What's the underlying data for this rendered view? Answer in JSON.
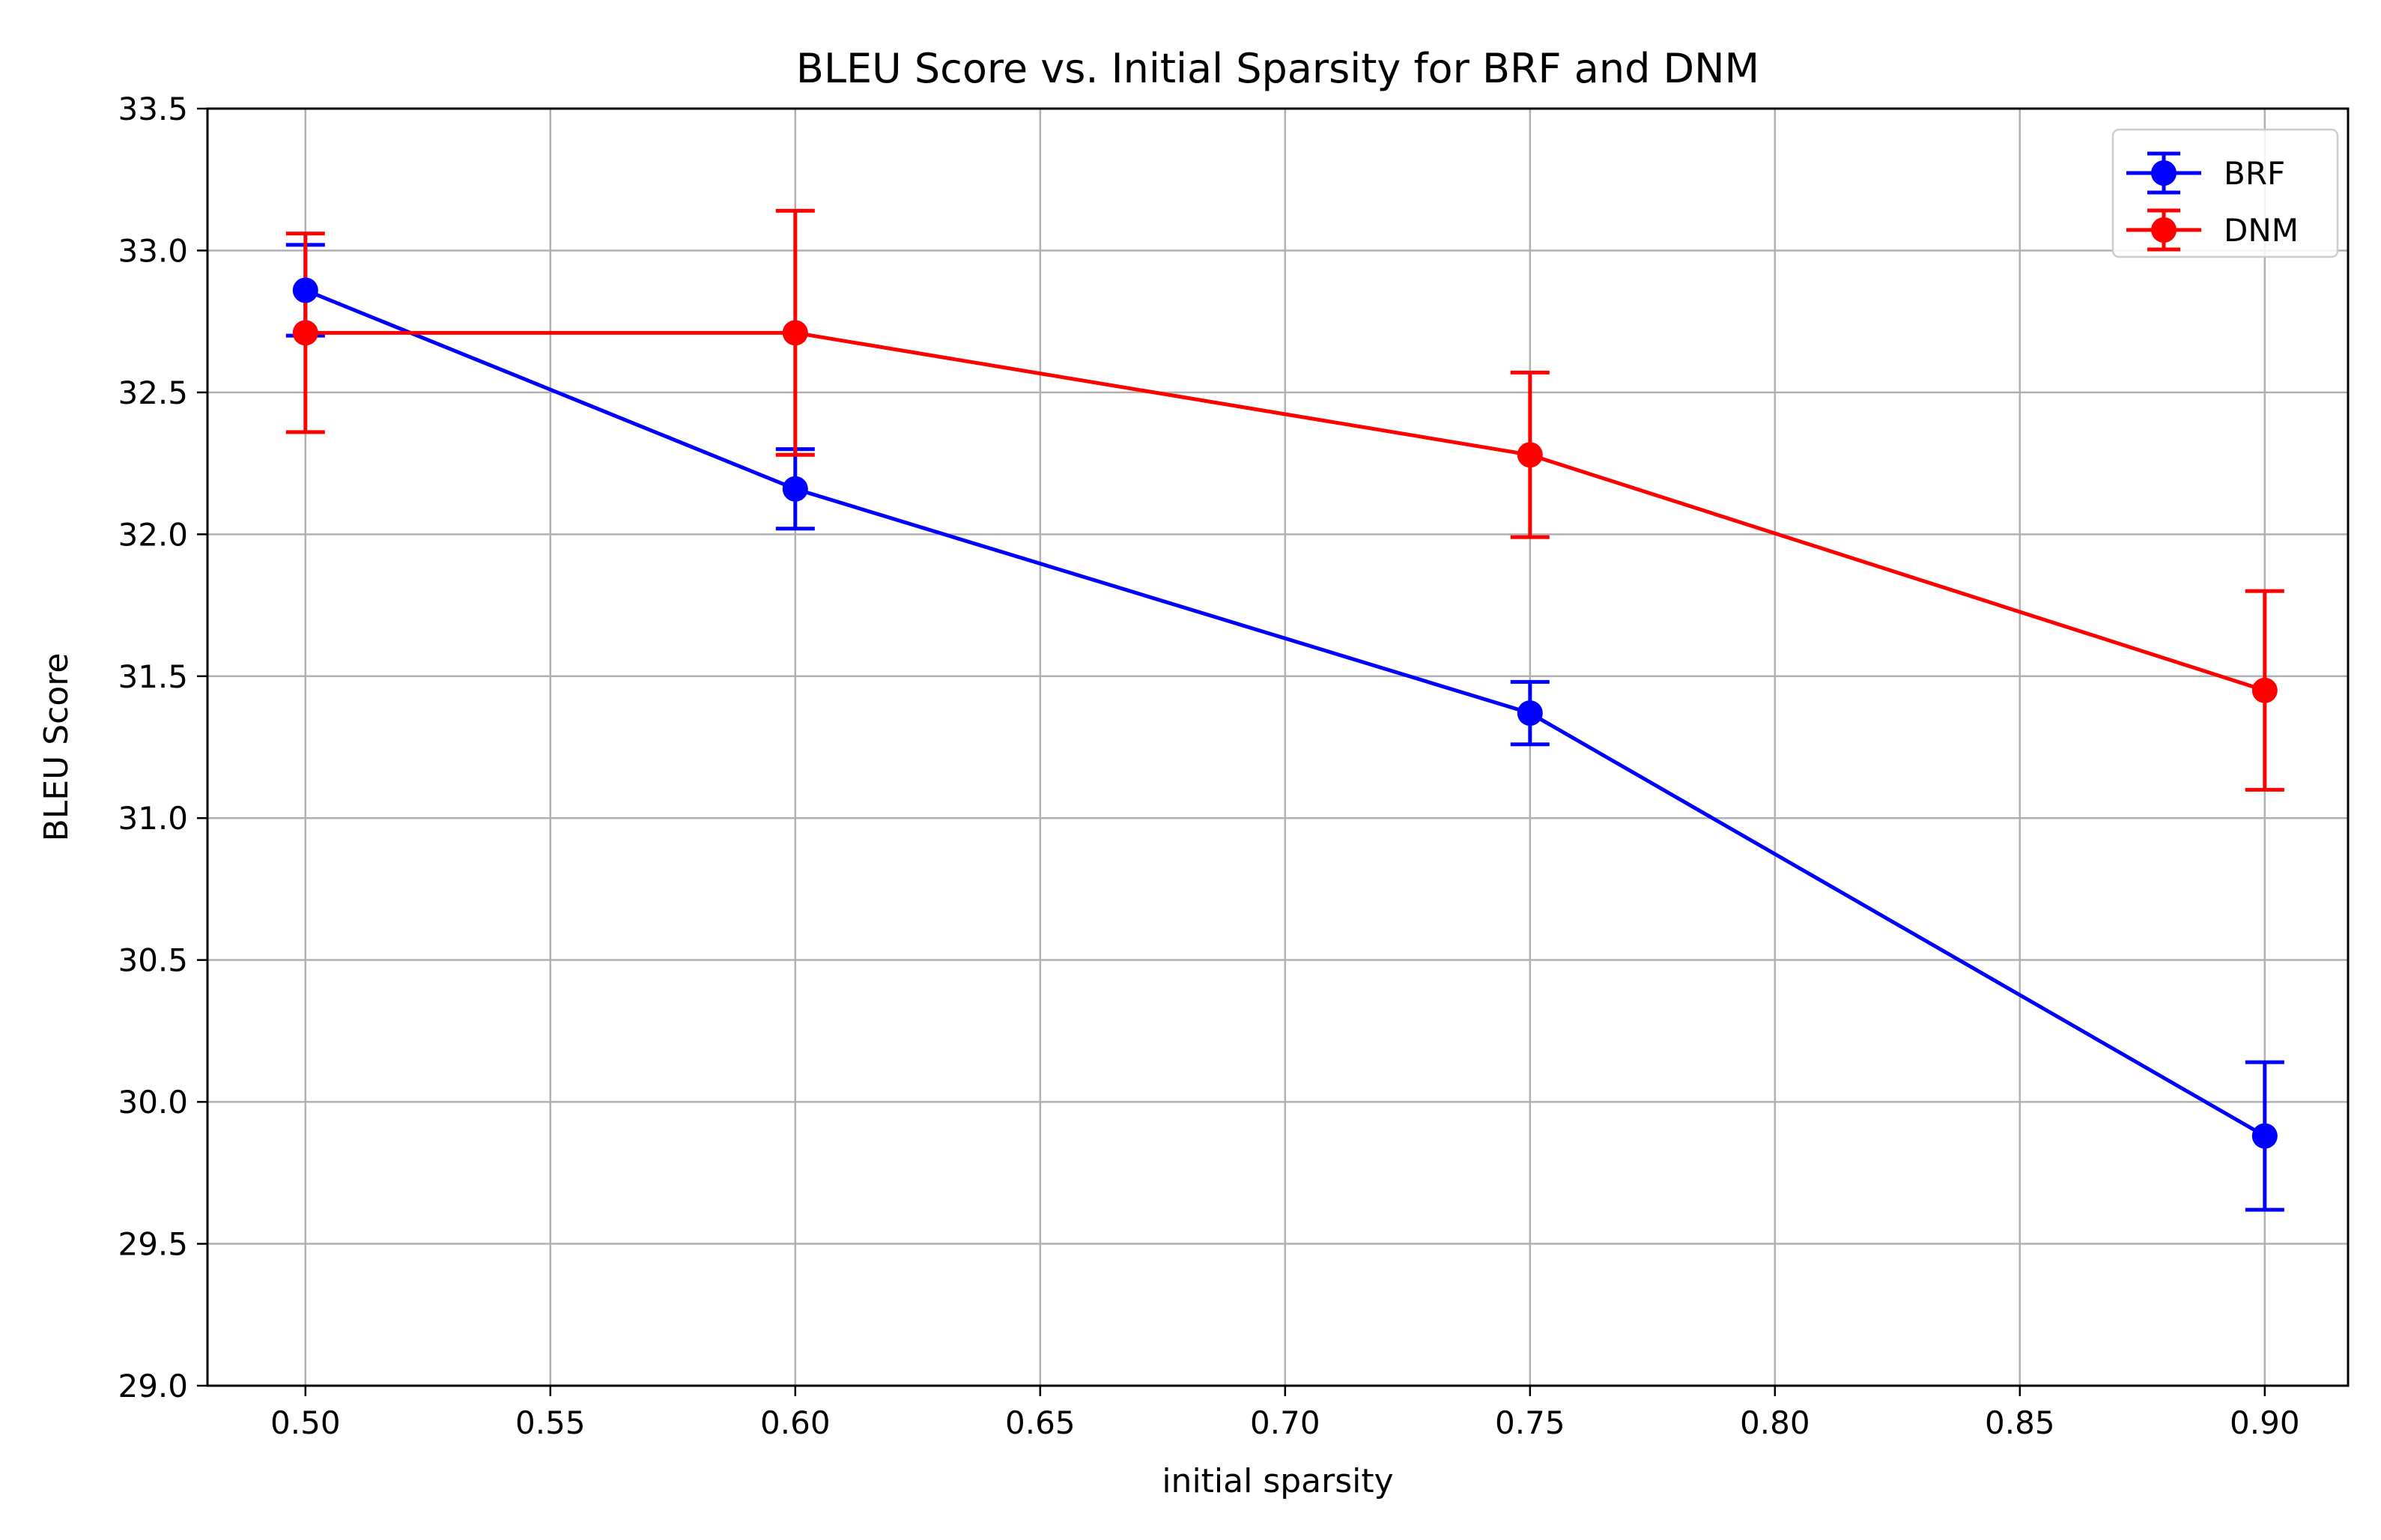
{
  "chart_data": {
    "type": "line",
    "title": "BLEU Score vs. Initial Sparsity for BRF and DNM",
    "xlabel": "initial sparsity",
    "ylabel": "BLEU Score",
    "xlim": [
      0.48,
      0.917
    ],
    "ylim": [
      29.0,
      33.5
    ],
    "x_ticks": [
      0.5,
      0.55,
      0.6,
      0.65,
      0.7,
      0.75,
      0.8,
      0.85,
      0.9
    ],
    "x_tick_labels": [
      "0.50",
      "0.55",
      "0.60",
      "0.65",
      "0.70",
      "0.75",
      "0.80",
      "0.85",
      "0.90"
    ],
    "y_ticks": [
      29.0,
      29.5,
      30.0,
      30.5,
      31.0,
      31.5,
      32.0,
      32.5,
      33.0,
      33.5
    ],
    "y_tick_labels": [
      "29.0",
      "29.5",
      "30.0",
      "30.5",
      "31.0",
      "31.5",
      "32.0",
      "32.5",
      "33.0",
      "33.5"
    ],
    "grid": true,
    "legend_position": "top-right",
    "x": [
      0.5,
      0.6,
      0.75,
      0.9
    ],
    "series": [
      {
        "name": "BRF",
        "color": "#0000ff",
        "values": [
          32.86,
          32.16,
          31.37,
          29.88
        ],
        "errors": [
          0.16,
          0.14,
          0.11,
          0.26
        ]
      },
      {
        "name": "DNM",
        "color": "#ff0000",
        "values": [
          32.71,
          32.71,
          32.28,
          31.45
        ],
        "errors": [
          0.35,
          0.43,
          0.29,
          0.35
        ]
      }
    ]
  }
}
